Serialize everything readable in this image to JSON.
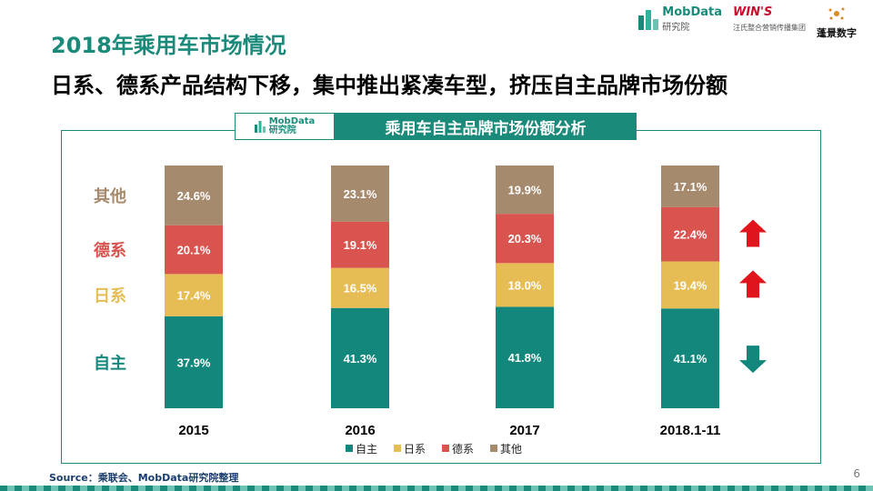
{
  "header": {
    "title": "2018年乘用车市场情况",
    "subtitle": "日系、德系产品结构下移，集中推出紧凑车型，挤压自主品牌市场份额"
  },
  "logos": {
    "mobdata": {
      "name": "MobData",
      "sub": "研究院"
    },
    "wins": {
      "name": "WIN'S",
      "sub": "汪氏整合营销传播集团"
    },
    "pengjing": {
      "name": "蓬景数字"
    }
  },
  "banner": {
    "logo_name": "MobData",
    "logo_sub": "研究院",
    "title": "乘用车自主品牌市场份额分析"
  },
  "chart_data": {
    "type": "bar",
    "stacked": true,
    "title": "乘用车自主品牌市场份额分析",
    "categories": [
      "2015",
      "2016",
      "2017",
      "2018.1-11"
    ],
    "series": [
      {
        "name": "自主",
        "values": [
          37.9,
          41.3,
          41.8,
          41.1
        ],
        "labels": [
          "37.9%",
          "41.3%",
          "41.8%",
          "41.1%"
        ],
        "color": "#13877b"
      },
      {
        "name": "日系",
        "values": [
          17.4,
          16.5,
          18.0,
          19.4
        ],
        "labels": [
          "17.4%",
          "16.5%",
          "18.0%",
          "19.4%"
        ],
        "color": "#e6bd55"
      },
      {
        "name": "德系",
        "values": [
          20.1,
          19.1,
          20.3,
          22.4
        ],
        "labels": [
          "20.1%",
          "19.1%",
          "20.3%",
          "22.4%"
        ],
        "color": "#d9534f"
      },
      {
        "name": "其他",
        "values": [
          24.6,
          23.1,
          19.9,
          17.1
        ],
        "labels": [
          "24.6%",
          "23.1%",
          "19.9%",
          "17.1%"
        ],
        "color": "#a68a6e"
      }
    ],
    "row_labels": [
      "自主",
      "日系",
      "德系",
      "其他"
    ],
    "row_label_colors": [
      "#13877b",
      "#e6bd55",
      "#d9534f",
      "#a68a6e"
    ],
    "trend_arrows": [
      {
        "series": "德系",
        "direction": "up",
        "color": "#e0141d"
      },
      {
        "series": "日系",
        "direction": "up",
        "color": "#e0141d"
      },
      {
        "series": "自主",
        "direction": "down",
        "color": "#13877b"
      }
    ],
    "legend_position": "bottom",
    "grid": false
  },
  "footer": {
    "source": "Source：乘联会、MobData研究院整理",
    "page_number": "6"
  }
}
